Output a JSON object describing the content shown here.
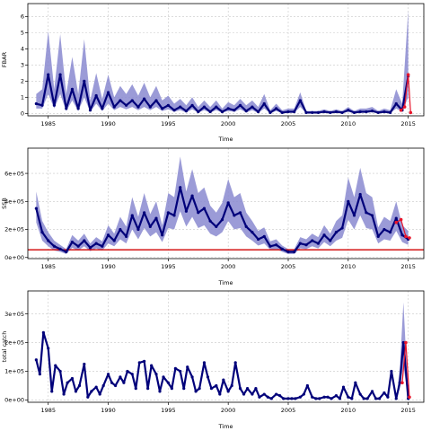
{
  "chart_data": [
    {
      "type": "line",
      "ylabel": "FBAR",
      "xlabel": "Time",
      "xlim": [
        1983.3,
        2016.3
      ],
      "ylim": [
        -0.15,
        6.8
      ],
      "xticks": [
        1985,
        1990,
        1995,
        2000,
        2005,
        2010,
        2015
      ],
      "yticks": [
        0,
        1,
        2,
        3,
        4,
        5,
        6
      ],
      "yticklabels": [
        "0",
        "1",
        "2",
        "3",
        "4",
        "5",
        "6"
      ],
      "grid": true,
      "colors": {
        "line": "#00007a",
        "band": "#8a8ad0",
        "retro": "#e8152b"
      },
      "series": [
        {
          "x": [
            1984.0,
            1984.5,
            1985.0,
            1985.5,
            1986.0,
            1986.5,
            1987.0,
            1987.5,
            1988.0,
            1988.5,
            1989.0,
            1989.5,
            1990.0,
            1990.5,
            1991.0,
            1991.5,
            1992.0,
            1992.5,
            1993.0,
            1993.5,
            1994.0,
            1994.5,
            1995.0,
            1995.5,
            1996.0,
            1996.5,
            1997.0,
            1997.5,
            1998.0,
            1998.5,
            1999.0,
            1999.5,
            2000.0,
            2000.5,
            2001.0,
            2001.5,
            2002.0,
            2002.5,
            2003.0,
            2003.5,
            2004.0,
            2004.5,
            2005.0,
            2005.5,
            2006.0,
            2006.5,
            2007.0,
            2007.5,
            2008.0,
            2008.5,
            2009.0,
            2009.5,
            2010.0,
            2010.5,
            2011.0,
            2011.5,
            2012.0,
            2012.5,
            2013.0,
            2013.5,
            2014.0,
            2014.5,
            2015.0
          ],
          "y": [
            0.6,
            0.5,
            2.4,
            0.5,
            2.4,
            0.3,
            1.5,
            0.3,
            2.0,
            0.2,
            1.1,
            0.3,
            1.3,
            0.4,
            0.8,
            0.5,
            0.8,
            0.4,
            0.9,
            0.4,
            0.8,
            0.3,
            0.5,
            0.2,
            0.4,
            0.15,
            0.5,
            0.1,
            0.4,
            0.1,
            0.4,
            0.1,
            0.3,
            0.2,
            0.5,
            0.15,
            0.4,
            0.1,
            0.6,
            0.05,
            0.3,
            0.05,
            0.1,
            0.1,
            0.8,
            0.05,
            0.05,
            0.05,
            0.1,
            0.05,
            0.1,
            0.05,
            0.2,
            0.05,
            0.1,
            0.1,
            0.15,
            0.05,
            0.1,
            0.05,
            0.6,
            0.2,
            2.3
          ],
          "lower": [
            0.3,
            0.3,
            1.2,
            0.3,
            1.2,
            0.15,
            0.8,
            0.15,
            1.0,
            0.1,
            0.6,
            0.15,
            0.6,
            0.2,
            0.4,
            0.25,
            0.4,
            0.2,
            0.4,
            0.2,
            0.4,
            0.15,
            0.25,
            0.1,
            0.2,
            0.05,
            0.25,
            0.05,
            0.2,
            0.05,
            0.2,
            0.05,
            0.15,
            0.1,
            0.25,
            0.05,
            0.2,
            0.03,
            0.3,
            0.02,
            0.15,
            0.02,
            0.05,
            0.05,
            0.4,
            0.02,
            0.02,
            0.02,
            0.05,
            0.02,
            0.05,
            0.02,
            0.1,
            0.02,
            0.05,
            0.05,
            0.07,
            0.02,
            0.05,
            0.02,
            0.3,
            0.1,
            1.0
          ],
          "upper": [
            1.2,
            1.5,
            5.1,
            1.5,
            4.9,
            1.2,
            3.5,
            1.2,
            4.6,
            0.8,
            2.5,
            0.9,
            2.4,
            1.0,
            1.7,
            1.2,
            1.8,
            1.1,
            1.9,
            1.0,
            1.7,
            0.8,
            1.1,
            0.6,
            0.9,
            0.5,
            1.0,
            0.4,
            0.8,
            0.4,
            0.8,
            0.3,
            0.7,
            0.5,
            0.9,
            0.5,
            0.8,
            0.4,
            1.2,
            0.2,
            0.6,
            0.2,
            0.3,
            0.3,
            1.3,
            0.15,
            0.15,
            0.15,
            0.25,
            0.15,
            0.25,
            0.15,
            0.4,
            0.15,
            0.3,
            0.3,
            0.4,
            0.15,
            0.3,
            0.2,
            1.5,
            0.6,
            6.4
          ],
          "retro_x": [
            2014.4,
            2014.7,
            2015.0,
            2015.2
          ],
          "retro_y": [
            0.2,
            0.4,
            2.4,
            0.05
          ]
        }
      ]
    },
    {
      "type": "line",
      "ylabel": "SSB",
      "xlabel": "Time",
      "xlim": [
        1983.3,
        2016.3
      ],
      "ylim": [
        -8000,
        780000
      ],
      "xticks": [
        1985,
        1990,
        1995,
        2000,
        2005,
        2010,
        2015
      ],
      "yticks": [
        0,
        200000,
        400000,
        600000
      ],
      "yticklabels": [
        "0e+00",
        "2e+05",
        "4e+05",
        "6e+05"
      ],
      "hline": 55000,
      "grid": true,
      "colors": {
        "line": "#00007a",
        "band": "#8a8ad0",
        "retro": "#e8152b",
        "ref": "#d00000"
      },
      "series": [
        {
          "x": [
            1984.0,
            1984.5,
            1985.0,
            1985.5,
            1986.0,
            1986.5,
            1987.0,
            1987.5,
            1988.0,
            1988.5,
            1989.0,
            1989.5,
            1990.0,
            1990.5,
            1991.0,
            1991.5,
            1992.0,
            1992.5,
            1993.0,
            1993.5,
            1994.0,
            1994.5,
            1995.0,
            1995.5,
            1996.0,
            1996.5,
            1997.0,
            1997.5,
            1998.0,
            1998.5,
            1999.0,
            1999.5,
            2000.0,
            2000.5,
            2001.0,
            2001.5,
            2002.0,
            2002.5,
            2003.0,
            2003.5,
            2004.0,
            2004.5,
            2005.0,
            2005.5,
            2006.0,
            2006.5,
            2007.0,
            2007.5,
            2008.0,
            2008.5,
            2009.0,
            2009.5,
            2010.0,
            2010.5,
            2011.0,
            2011.5,
            2012.0,
            2012.5,
            2013.0,
            2013.5,
            2014.0,
            2014.5,
            2015.0
          ],
          "y": [
            350000,
            180000,
            120000,
            80000,
            60000,
            40000,
            110000,
            80000,
            120000,
            70000,
            100000,
            80000,
            160000,
            120000,
            200000,
            150000,
            300000,
            200000,
            320000,
            220000,
            280000,
            160000,
            320000,
            300000,
            500000,
            330000,
            440000,
            320000,
            350000,
            260000,
            220000,
            270000,
            390000,
            300000,
            320000,
            220000,
            180000,
            130000,
            150000,
            80000,
            90000,
            60000,
            40000,
            40000,
            100000,
            90000,
            120000,
            100000,
            160000,
            120000,
            180000,
            210000,
            400000,
            300000,
            450000,
            320000,
            300000,
            150000,
            200000,
            180000,
            280000,
            160000,
            130000
          ],
          "lower": [
            250000,
            120000,
            80000,
            50000,
            40000,
            25000,
            70000,
            50000,
            80000,
            45000,
            65000,
            50000,
            100000,
            80000,
            130000,
            100000,
            200000,
            130000,
            210000,
            150000,
            180000,
            110000,
            210000,
            200000,
            330000,
            220000,
            290000,
            210000,
            230000,
            170000,
            150000,
            180000,
            260000,
            200000,
            210000,
            150000,
            120000,
            85000,
            100000,
            55000,
            60000,
            40000,
            25000,
            25000,
            65000,
            60000,
            80000,
            65000,
            110000,
            80000,
            120000,
            140000,
            270000,
            200000,
            300000,
            210000,
            200000,
            100000,
            130000,
            120000,
            190000,
            110000,
            90000
          ],
          "upper": [
            470000,
            260000,
            180000,
            120000,
            90000,
            60000,
            160000,
            120000,
            170000,
            100000,
            145000,
            115000,
            230000,
            170000,
            290000,
            220000,
            430000,
            290000,
            460000,
            310000,
            400000,
            230000,
            460000,
            430000,
            720000,
            470000,
            630000,
            460000,
            500000,
            370000,
            320000,
            390000,
            560000,
            430000,
            460000,
            320000,
            260000,
            190000,
            215000,
            115000,
            130000,
            85000,
            60000,
            60000,
            145000,
            130000,
            170000,
            145000,
            230000,
            170000,
            260000,
            300000,
            570000,
            430000,
            640000,
            460000,
            430000,
            215000,
            290000,
            260000,
            400000,
            230000,
            190000
          ],
          "retro_x": [
            2014.0,
            2014.4,
            2014.8,
            2015.1
          ],
          "retro_y": [
            250000,
            270000,
            150000,
            140000
          ]
        }
      ]
    },
    {
      "type": "line",
      "ylabel": "total catch",
      "xlabel": "Time",
      "xlim": [
        1983.3,
        2016.3
      ],
      "ylim": [
        -8000,
        380000
      ],
      "xticks": [
        1985,
        1990,
        1995,
        2000,
        2005,
        2010,
        2015
      ],
      "yticks": [
        0,
        100000,
        200000,
        300000
      ],
      "yticklabels": [
        "0e+00",
        "1e+05",
        "2e+05",
        "3e+05"
      ],
      "grid": true,
      "colors": {
        "line": "#00007a",
        "band": "#8a8ad0",
        "retro": "#e8152b"
      },
      "series": [
        {
          "x": [
            1984.0,
            1984.3,
            1984.6,
            1985.0,
            1985.3,
            1985.6,
            1986.0,
            1986.3,
            1986.6,
            1987.0,
            1987.3,
            1987.6,
            1988.0,
            1988.3,
            1988.6,
            1989.0,
            1989.3,
            1989.6,
            1990.0,
            1990.3,
            1990.6,
            1991.0,
            1991.3,
            1991.6,
            1992.0,
            1992.3,
            1992.6,
            1993.0,
            1993.3,
            1993.6,
            1994.0,
            1994.3,
            1994.6,
            1995.0,
            1995.3,
            1995.6,
            1996.0,
            1996.3,
            1996.6,
            1997.0,
            1997.3,
            1997.6,
            1998.0,
            1998.3,
            1998.6,
            1999.0,
            1999.3,
            1999.6,
            2000.0,
            2000.3,
            2000.6,
            2001.0,
            2001.3,
            2001.6,
            2002.0,
            2002.3,
            2002.6,
            2003.0,
            2003.3,
            2003.6,
            2004.0,
            2004.3,
            2004.6,
            2005.0,
            2005.3,
            2005.6,
            2006.0,
            2006.3,
            2006.6,
            2007.0,
            2007.3,
            2007.6,
            2008.0,
            2008.3,
            2008.6,
            2009.0,
            2009.3,
            2009.6,
            2010.0,
            2010.3,
            2010.6,
            2011.0,
            2011.3,
            2011.6,
            2012.0,
            2012.3,
            2012.6,
            2013.0,
            2013.3,
            2013.6,
            2014.0,
            2014.3,
            2014.6,
            2015.0
          ],
          "y": [
            140000,
            90000,
            235000,
            180000,
            30000,
            120000,
            100000,
            20000,
            60000,
            75000,
            30000,
            50000,
            125000,
            10000,
            30000,
            45000,
            20000,
            50000,
            90000,
            60000,
            50000,
            80000,
            60000,
            100000,
            90000,
            40000,
            130000,
            135000,
            40000,
            120000,
            90000,
            30000,
            80000,
            60000,
            40000,
            110000,
            100000,
            40000,
            115000,
            80000,
            30000,
            40000,
            130000,
            80000,
            40000,
            50000,
            20000,
            70000,
            30000,
            50000,
            130000,
            40000,
            20000,
            40000,
            20000,
            40000,
            10000,
            20000,
            10000,
            5000,
            20000,
            15000,
            5000,
            5000,
            5000,
            5000,
            10000,
            20000,
            50000,
            10000,
            5000,
            5000,
            10000,
            10000,
            5000,
            15000,
            5000,
            45000,
            10000,
            5000,
            60000,
            20000,
            5000,
            5000,
            30000,
            5000,
            5000,
            25000,
            10000,
            100000,
            5000,
            60000,
            200000,
            5000
          ],
          "lower": [
            140000,
            90000,
            235000,
            180000,
            30000,
            120000,
            100000,
            20000,
            60000,
            75000,
            30000,
            50000,
            125000,
            10000,
            30000,
            45000,
            20000,
            50000,
            90000,
            60000,
            50000,
            80000,
            60000,
            100000,
            90000,
            40000,
            130000,
            135000,
            40000,
            120000,
            90000,
            30000,
            80000,
            60000,
            40000,
            110000,
            100000,
            40000,
            115000,
            80000,
            30000,
            40000,
            130000,
            80000,
            40000,
            50000,
            20000,
            70000,
            30000,
            50000,
            130000,
            40000,
            20000,
            40000,
            20000,
            40000,
            10000,
            20000,
            10000,
            5000,
            20000,
            15000,
            5000,
            5000,
            5000,
            5000,
            10000,
            20000,
            50000,
            10000,
            5000,
            5000,
            10000,
            10000,
            5000,
            15000,
            5000,
            45000,
            10000,
            5000,
            60000,
            20000,
            5000,
            5000,
            30000,
            5000,
            5000,
            25000,
            10000,
            100000,
            5000,
            40000,
            120000,
            3000
          ],
          "upper": [
            140000,
            90000,
            235000,
            180000,
            30000,
            120000,
            100000,
            20000,
            60000,
            75000,
            30000,
            50000,
            125000,
            10000,
            30000,
            45000,
            20000,
            50000,
            90000,
            60000,
            50000,
            80000,
            60000,
            100000,
            90000,
            40000,
            130000,
            135000,
            40000,
            120000,
            90000,
            30000,
            80000,
            60000,
            40000,
            110000,
            100000,
            40000,
            115000,
            80000,
            30000,
            40000,
            130000,
            80000,
            40000,
            50000,
            20000,
            70000,
            30000,
            50000,
            130000,
            40000,
            20000,
            40000,
            20000,
            40000,
            10000,
            20000,
            10000,
            5000,
            20000,
            15000,
            5000,
            5000,
            5000,
            5000,
            10000,
            20000,
            50000,
            10000,
            5000,
            5000,
            10000,
            10000,
            5000,
            15000,
            5000,
            45000,
            10000,
            5000,
            60000,
            20000,
            5000,
            5000,
            30000,
            5000,
            5000,
            25000,
            10000,
            100000,
            5000,
            110000,
            340000,
            10000
          ],
          "retro_x": [
            2014.5,
            2014.8,
            2015.1
          ],
          "retro_y": [
            60000,
            200000,
            10000
          ]
        }
      ]
    }
  ]
}
